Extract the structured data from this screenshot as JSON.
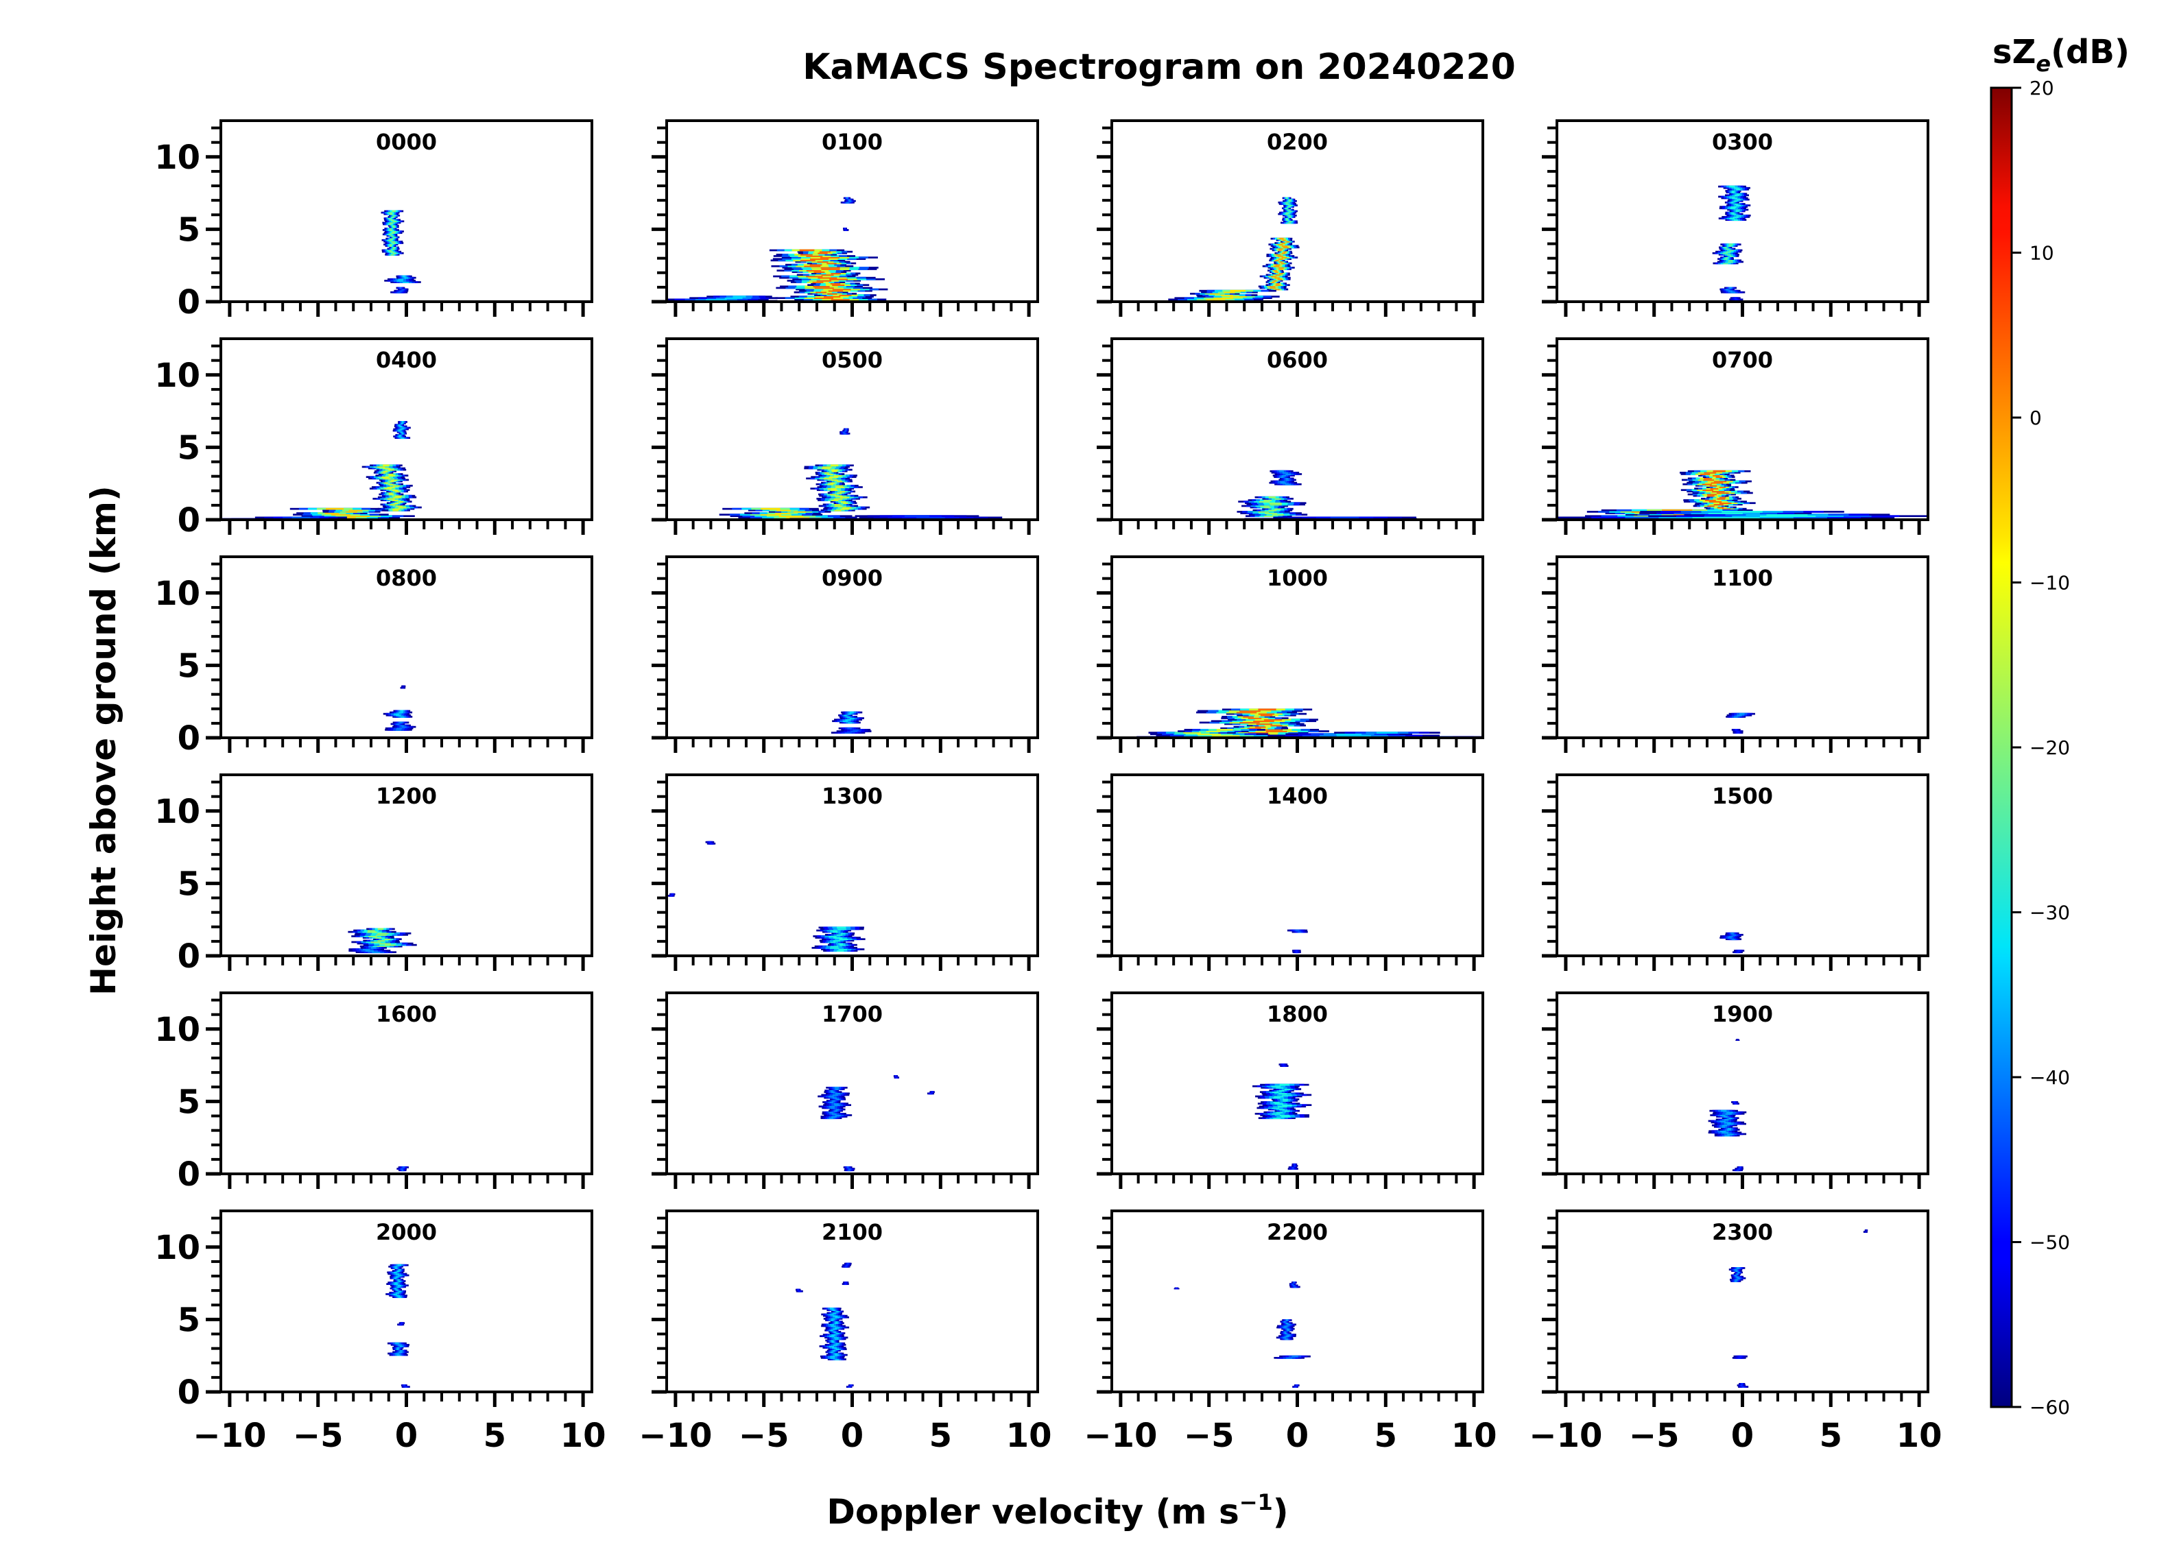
{
  "chart_data": {
    "type": "heatmap",
    "title": "KaMACS Spectrogram on 20240220",
    "xlabel": "Doppler velocity (m s",
    "xlabel_sup": "−1",
    "xlabel_close": ")",
    "ylabel": "Height above ground (km)",
    "xlim": [
      -10.5,
      10.5
    ],
    "ylim": [
      0,
      12.5
    ],
    "x_ticks": [
      -10,
      -5,
      0,
      5,
      10
    ],
    "x_tick_labels": [
      "−10",
      "−5",
      "0",
      "5",
      "10"
    ],
    "y_ticks": [
      0,
      5,
      10
    ],
    "y_tick_labels": [
      "0",
      "5",
      "10"
    ],
    "colorbar": {
      "label": "sZ",
      "label_sub": "e",
      "label_unit": "(dB)",
      "range": [
        -60,
        20
      ],
      "ticks": [
        20,
        10,
        0,
        -10,
        -20,
        -30,
        -40,
        -50,
        -60
      ],
      "tick_labels": [
        "20",
        "10",
        "0",
        "−10",
        "−20",
        "−30",
        "−40",
        "−50",
        "−60"
      ],
      "colormap": "jet"
    },
    "panels": [
      {
        "label": "0000",
        "features": [
          {
            "v": -0.8,
            "h0": 3.2,
            "h1": 6.3,
            "w": 1.1,
            "peak": -22
          },
          {
            "v": -0.2,
            "h0": 1.3,
            "h1": 1.8,
            "w": 1.8,
            "peak": -35
          },
          {
            "v": -0.3,
            "h0": 0.6,
            "h1": 1.0,
            "w": 1.0,
            "peak": -45
          }
        ]
      },
      {
        "label": "0100",
        "features": [
          {
            "v": -1.5,
            "h0": 0.0,
            "h1": 3.6,
            "w": 5.5,
            "peak": 0,
            "skew": 1.2
          },
          {
            "v": -7.0,
            "h0": 0.0,
            "h1": 0.4,
            "w": 6.0,
            "peak": -35
          },
          {
            "v": -0.2,
            "h0": 6.8,
            "h1": 7.2,
            "w": 0.8,
            "peak": -42
          },
          {
            "v": -0.4,
            "h0": 4.9,
            "h1": 5.1,
            "w": 0.4,
            "peak": -50
          }
        ]
      },
      {
        "label": "0200",
        "features": [
          {
            "v": -1.0,
            "h0": 0.8,
            "h1": 4.4,
            "w": 1.6,
            "peak": -5,
            "skew": -0.6
          },
          {
            "v": -4.0,
            "h0": 0.1,
            "h1": 0.8,
            "w": 5.6,
            "peak": -10
          },
          {
            "v": -0.5,
            "h0": 5.4,
            "h1": 7.2,
            "w": 1.0,
            "peak": -25
          }
        ]
      },
      {
        "label": "0300",
        "features": [
          {
            "v": -0.4,
            "h0": 5.6,
            "h1": 8.0,
            "w": 1.6,
            "peak": -30
          },
          {
            "v": -0.8,
            "h0": 2.6,
            "h1": 4.0,
            "w": 1.5,
            "peak": -25
          },
          {
            "v": -0.7,
            "h0": 0.6,
            "h1": 1.0,
            "w": 1.4,
            "peak": -40
          },
          {
            "v": -0.3,
            "h0": 0.1,
            "h1": 0.3,
            "w": 1.0,
            "peak": -50
          }
        ]
      },
      {
        "label": "0400",
        "features": [
          {
            "v": -0.8,
            "h0": 0.6,
            "h1": 3.8,
            "w": 2.2,
            "peak": -15,
            "skew": 0.8
          },
          {
            "v": -3.5,
            "h0": 0.1,
            "h1": 0.8,
            "w": 6.5,
            "peak": -8
          },
          {
            "v": -0.3,
            "h0": 5.6,
            "h1": 6.8,
            "w": 0.9,
            "peak": -35
          },
          {
            "v": -6.0,
            "h0": 0.0,
            "h1": 0.2,
            "w": 9.0,
            "peak": -45
          }
        ]
      },
      {
        "label": "0500",
        "features": [
          {
            "v": -0.9,
            "h0": 0.6,
            "h1": 3.8,
            "w": 2.6,
            "peak": -15,
            "skew": 0.8
          },
          {
            "v": -3.8,
            "h0": 0.1,
            "h1": 0.8,
            "w": 7.0,
            "peak": -10
          },
          {
            "v": -0.4,
            "h0": 5.9,
            "h1": 6.3,
            "w": 0.6,
            "peak": -45
          },
          {
            "v": 3.0,
            "h0": 0.0,
            "h1": 0.3,
            "w": 14.0,
            "peak": -48
          }
        ]
      },
      {
        "label": "0600",
        "features": [
          {
            "v": -1.5,
            "h0": 0.2,
            "h1": 1.6,
            "w": 3.5,
            "peak": -20
          },
          {
            "v": -0.7,
            "h0": 2.4,
            "h1": 3.4,
            "w": 1.6,
            "peak": -40
          },
          {
            "v": 3.0,
            "h0": 0.0,
            "h1": 0.2,
            "w": 10.0,
            "peak": -48
          }
        ]
      },
      {
        "label": "0700",
        "features": [
          {
            "v": -1.5,
            "h0": 0.3,
            "h1": 3.4,
            "w": 3.6,
            "peak": 0,
            "skew": 0.5
          },
          {
            "v": -4.5,
            "h0": 0.0,
            "h1": 0.7,
            "w": 11.0,
            "peak": -5
          },
          {
            "v": 1.0,
            "h0": 0.1,
            "h1": 0.6,
            "w": 19.5,
            "peak": -30
          }
        ]
      },
      {
        "label": "0800",
        "features": [
          {
            "v": -0.4,
            "h0": 1.4,
            "h1": 1.9,
            "w": 1.5,
            "peak": -35
          },
          {
            "v": -0.3,
            "h0": 0.5,
            "h1": 1.1,
            "w": 1.6,
            "peak": -42
          },
          {
            "v": -0.2,
            "h0": 3.4,
            "h1": 3.6,
            "w": 0.3,
            "peak": -55
          }
        ]
      },
      {
        "label": "0900",
        "features": [
          {
            "v": -0.2,
            "h0": 1.0,
            "h1": 1.8,
            "w": 1.6,
            "peak": -35
          },
          {
            "v": 0.0,
            "h0": 0.3,
            "h1": 0.7,
            "w": 2.0,
            "peak": -45
          }
        ]
      },
      {
        "label": "1000",
        "features": [
          {
            "v": -2.0,
            "h0": 0.2,
            "h1": 2.0,
            "w": 6.0,
            "peak": 0,
            "skew": 0.8
          },
          {
            "v": -5.0,
            "h0": 0.0,
            "h1": 0.6,
            "w": 8.0,
            "peak": -15
          },
          {
            "v": 4.0,
            "h0": 0.0,
            "h1": 0.4,
            "w": 12.0,
            "peak": -35
          }
        ]
      },
      {
        "label": "1100",
        "features": [
          {
            "v": -0.2,
            "h0": 1.4,
            "h1": 1.7,
            "w": 1.5,
            "peak": -40
          },
          {
            "v": -0.3,
            "h0": 0.3,
            "h1": 0.6,
            "w": 0.6,
            "peak": -50
          }
        ]
      },
      {
        "label": "1200",
        "features": [
          {
            "v": -1.5,
            "h0": 0.6,
            "h1": 1.9,
            "w": 3.2,
            "peak": -20,
            "skew": 0.6
          },
          {
            "v": -2.0,
            "h0": 0.2,
            "h1": 0.6,
            "w": 2.4,
            "peak": -40
          }
        ]
      },
      {
        "label": "1300",
        "features": [
          {
            "v": -0.8,
            "h0": 0.3,
            "h1": 2.0,
            "w": 2.6,
            "peak": -30
          },
          {
            "v": -8.0,
            "h0": 7.7,
            "h1": 7.9,
            "w": 0.5,
            "peak": -50
          },
          {
            "v": -10.2,
            "h0": 4.1,
            "h1": 4.3,
            "w": 0.4,
            "peak": -50
          }
        ]
      },
      {
        "label": "1400",
        "features": [
          {
            "v": 0.0,
            "h0": 1.6,
            "h1": 1.8,
            "w": 1.2,
            "peak": -45
          },
          {
            "v": 0.0,
            "h0": 0.2,
            "h1": 0.4,
            "w": 0.5,
            "peak": -50
          }
        ]
      },
      {
        "label": "1500",
        "features": [
          {
            "v": -0.6,
            "h0": 1.1,
            "h1": 1.6,
            "w": 1.2,
            "peak": -42
          },
          {
            "v": -0.2,
            "h0": 0.2,
            "h1": 0.4,
            "w": 0.6,
            "peak": -50
          }
        ]
      },
      {
        "label": "1600",
        "features": [
          {
            "v": -0.2,
            "h0": 0.2,
            "h1": 0.5,
            "w": 0.6,
            "peak": -45
          }
        ]
      },
      {
        "label": "1700",
        "features": [
          {
            "v": -1.0,
            "h0": 3.8,
            "h1": 6.0,
            "w": 1.6,
            "peak": -40
          },
          {
            "v": -0.2,
            "h0": 0.2,
            "h1": 0.5,
            "w": 0.6,
            "peak": -45
          },
          {
            "v": 2.5,
            "h0": 6.6,
            "h1": 6.8,
            "w": 0.3,
            "peak": -50
          },
          {
            "v": 4.5,
            "h0": 5.5,
            "h1": 5.7,
            "w": 0.5,
            "peak": -50
          }
        ]
      },
      {
        "label": "1800",
        "features": [
          {
            "v": -0.9,
            "h0": 3.8,
            "h1": 6.2,
            "w": 2.8,
            "peak": -30
          },
          {
            "v": -0.8,
            "h0": 7.4,
            "h1": 7.6,
            "w": 0.5,
            "peak": -50
          },
          {
            "v": -0.2,
            "h0": 0.3,
            "h1": 0.7,
            "w": 0.6,
            "peak": -48
          }
        ]
      },
      {
        "label": "1900",
        "features": [
          {
            "v": -0.9,
            "h0": 2.6,
            "h1": 4.4,
            "w": 1.9,
            "peak": -38
          },
          {
            "v": -0.4,
            "h0": 4.8,
            "h1": 5.0,
            "w": 0.4,
            "peak": -50
          },
          {
            "v": -0.2,
            "h0": 0.2,
            "h1": 0.5,
            "w": 0.6,
            "peak": -48
          },
          {
            "v": -0.3,
            "h0": 9.2,
            "h1": 9.3,
            "w": 0.3,
            "peak": -55
          }
        ]
      },
      {
        "label": "2000",
        "features": [
          {
            "v": -0.5,
            "h0": 6.5,
            "h1": 8.8,
            "w": 1.1,
            "peak": -35
          },
          {
            "v": -0.4,
            "h0": 2.5,
            "h1": 3.4,
            "w": 1.1,
            "peak": -38
          },
          {
            "v": -0.3,
            "h0": 4.6,
            "h1": 4.8,
            "w": 0.4,
            "peak": -50
          },
          {
            "v": -0.1,
            "h0": 0.3,
            "h1": 0.5,
            "w": 0.6,
            "peak": -48
          }
        ]
      },
      {
        "label": "2100",
        "features": [
          {
            "v": -1.0,
            "h0": 2.2,
            "h1": 5.8,
            "w": 1.4,
            "peak": -35
          },
          {
            "v": -0.3,
            "h0": 8.6,
            "h1": 8.9,
            "w": 0.5,
            "peak": -48
          },
          {
            "v": -0.4,
            "h0": 7.4,
            "h1": 7.6,
            "w": 0.4,
            "peak": -50
          },
          {
            "v": -3.0,
            "h0": 6.9,
            "h1": 7.1,
            "w": 0.5,
            "peak": -50
          },
          {
            "v": -0.1,
            "h0": 0.3,
            "h1": 0.5,
            "w": 0.6,
            "peak": -48
          }
        ]
      },
      {
        "label": "2200",
        "features": [
          {
            "v": -0.6,
            "h0": 3.6,
            "h1": 5.0,
            "w": 1.0,
            "peak": -40
          },
          {
            "v": -0.3,
            "h0": 2.3,
            "h1": 2.5,
            "w": 1.8,
            "peak": -42
          },
          {
            "v": -0.2,
            "h0": 7.2,
            "h1": 7.6,
            "w": 0.6,
            "peak": -45
          },
          {
            "v": -6.8,
            "h0": 7.1,
            "h1": 7.2,
            "w": 0.4,
            "peak": -50
          },
          {
            "v": -0.1,
            "h0": 0.3,
            "h1": 0.5,
            "w": 0.6,
            "peak": -48
          }
        ]
      },
      {
        "label": "2300",
        "features": [
          {
            "v": -0.3,
            "h0": 7.6,
            "h1": 8.6,
            "w": 0.8,
            "peak": -40
          },
          {
            "v": -0.2,
            "h0": 2.3,
            "h1": 2.5,
            "w": 0.8,
            "peak": -50
          },
          {
            "v": 0.0,
            "h0": 0.3,
            "h1": 0.6,
            "w": 0.6,
            "peak": -48
          },
          {
            "v": 7.0,
            "h0": 11.0,
            "h1": 11.2,
            "w": 0.3,
            "peak": -55
          }
        ]
      }
    ]
  }
}
